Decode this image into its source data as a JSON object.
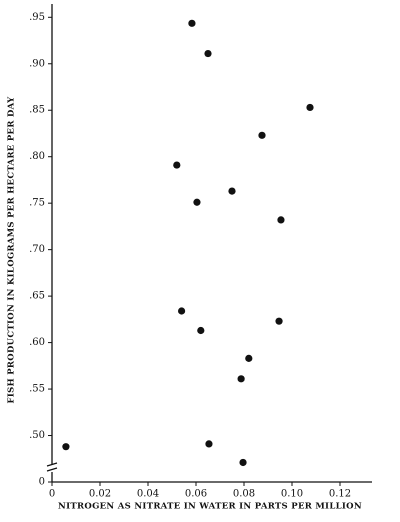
{
  "chart_data": {
    "type": "scatter",
    "x_label": "NITROGEN AS NITRATE IN WATER IN PARTS PER MILLION",
    "y_label": "FISH PRODUCTION IN KILOGRAMS PER HECTARE PER DAY",
    "x": [
      0.0583,
      0.065,
      0.1075,
      0.0875,
      0.052,
      0.075,
      0.0604,
      0.0954,
      0.054,
      0.0946,
      0.062,
      0.082,
      0.0788,
      0.0058,
      0.0654,
      0.0796
    ],
    "values": [
      0.9435,
      0.911,
      0.853,
      0.823,
      0.791,
      0.763,
      0.751,
      0.732,
      0.634,
      0.623,
      0.613,
      0.583,
      0.561,
      0.488,
      0.491,
      0.471
    ],
    "color": "#111111",
    "xlim": [
      0,
      0.13
    ],
    "xticks": [
      0,
      0.02,
      0.04,
      0.06,
      0.08,
      {
        "value": 0.1,
        "label": "0.10"
      },
      0.12
    ],
    "ylim": [
      0,
      0.96
    ],
    "y_break": [
      0,
      0.45
    ],
    "yticks": [
      0,
      {
        "value": 0.5,
        "label": ".50"
      },
      {
        "value": 0.55,
        "label": ".55"
      },
      {
        "value": 0.6,
        "label": ".60"
      },
      {
        "value": 0.65,
        "label": ".65"
      },
      {
        "value": 0.7,
        "label": ".70"
      },
      {
        "value": 0.75,
        "label": ".75"
      },
      {
        "value": 0.8,
        "label": ".80"
      },
      {
        "value": 0.85,
        "label": ".85"
      },
      {
        "value": 0.9,
        "label": ".90"
      },
      {
        "value": 0.95,
        "label": ".95"
      }
    ],
    "grid": false
  }
}
